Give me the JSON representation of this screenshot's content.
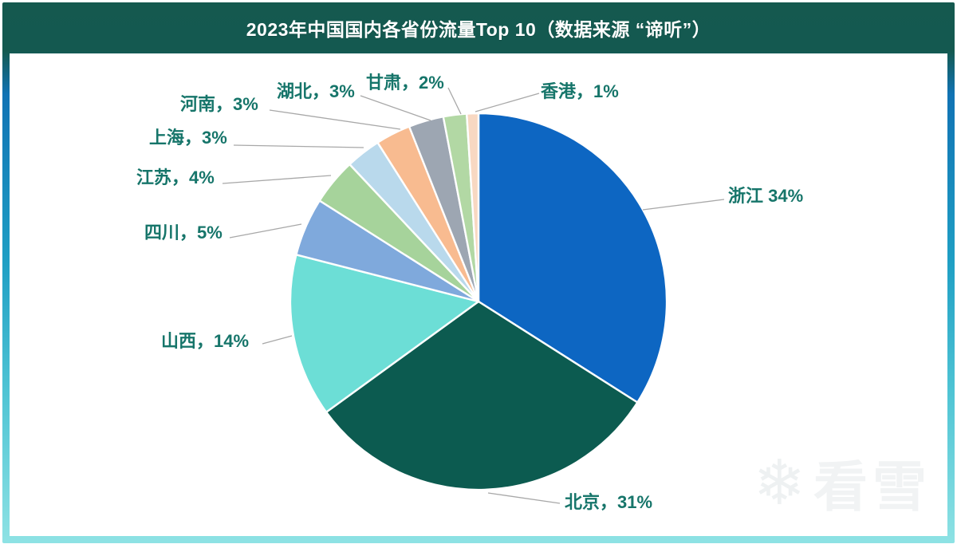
{
  "header": {
    "title": "2023年中国国内各省份流量Top 10（数据来源 “谛听”）"
  },
  "chart_data": {
    "type": "pie",
    "title": "2023年中国国内各省份流量Top 10（数据来源 “谛听”）",
    "start_angle_deg": 0,
    "direction": "clockwise",
    "unit": "%",
    "label_color": "#16756A",
    "leader_line_color": "#A8A8A8",
    "slice_border_color": "#FFFFFF",
    "slices": [
      {
        "key": "zhejiang",
        "name": "浙江",
        "value": 34,
        "label": "浙江 34%",
        "color": "#0D66C2"
      },
      {
        "key": "beijing",
        "name": "北京",
        "value": 31,
        "label": "北京，31%",
        "color": "#0C5B50"
      },
      {
        "key": "shanxi",
        "name": "山西",
        "value": 14,
        "label": "山西，14%",
        "color": "#6CDED6"
      },
      {
        "key": "sichuan",
        "name": "四川",
        "value": 5,
        "label": "四川，5%",
        "color": "#7FA9DC"
      },
      {
        "key": "jiangsu",
        "name": "江苏",
        "value": 4,
        "label": "江苏，4%",
        "color": "#A6D39B"
      },
      {
        "key": "shanghai",
        "name": "上海",
        "value": 3,
        "label": "上海，3%",
        "color": "#B9D9EC"
      },
      {
        "key": "henan",
        "name": "河南",
        "value": 3,
        "label": "河南，3%",
        "color": "#F8BB90"
      },
      {
        "key": "hubei",
        "name": "湖北",
        "value": 3,
        "label": "湖北，3%",
        "color": "#9DA6B2"
      },
      {
        "key": "gansu",
        "name": "甘肃",
        "value": 2,
        "label": "甘肃，2%",
        "color": "#B2D8A4"
      },
      {
        "key": "hongkong",
        "name": "香港",
        "value": 1,
        "label": "香港，1%",
        "color": "#F8D8C2"
      }
    ]
  },
  "watermark": {
    "icon": "snowflake-icon",
    "icon_glyph": "❄",
    "text": "看雪"
  }
}
